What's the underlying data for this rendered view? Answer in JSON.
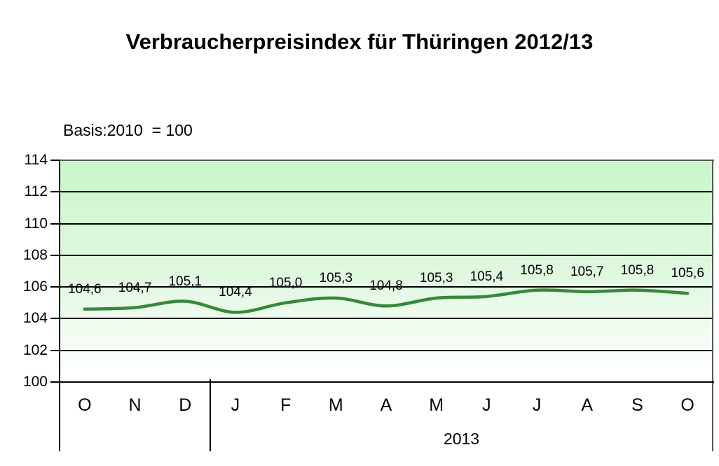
{
  "title": "Verbraucherpreisindex für Thüringen 2012/13",
  "basis_label": "Basis:2010  = 100",
  "chart_data": {
    "type": "line",
    "title": "Verbraucherpreisindex für Thüringen 2012/13",
    "subtitle": "Basis:2010  = 100",
    "categories": [
      "O",
      "N",
      "D",
      "J",
      "F",
      "M",
      "A",
      "M",
      "J",
      "J",
      "A",
      "S",
      "O"
    ],
    "values": [
      104.6,
      104.7,
      105.1,
      104.4,
      105.0,
      105.3,
      104.8,
      105.3,
      105.4,
      105.8,
      105.7,
      105.8,
      105.6
    ],
    "data_labels": [
      "104,6",
      "104,7",
      "105,1",
      "104,4",
      "105,0",
      "105,3",
      "104,8",
      "105,3",
      "105,4",
      "105,8",
      "105,7",
      "105,8",
      "105,6"
    ],
    "xlabel": "",
    "ylabel": "",
    "ylim": [
      100,
      114
    ],
    "yticks": [
      100,
      102,
      104,
      106,
      108,
      110,
      112,
      114
    ],
    "year_labels": [
      {
        "text": "2013",
        "from": 3,
        "to": 12
      }
    ],
    "group_separator_indices": [
      3
    ],
    "grid": true,
    "legend_position": "none",
    "line_smoothed": true,
    "markers": false,
    "line_color": "#38883c",
    "grid_color": "#000000",
    "axis_color": "#000000",
    "outer_border_color": "#595959",
    "plot_bg_top": "#c9f7c9",
    "plot_bg_bottom": "#ffffff"
  }
}
